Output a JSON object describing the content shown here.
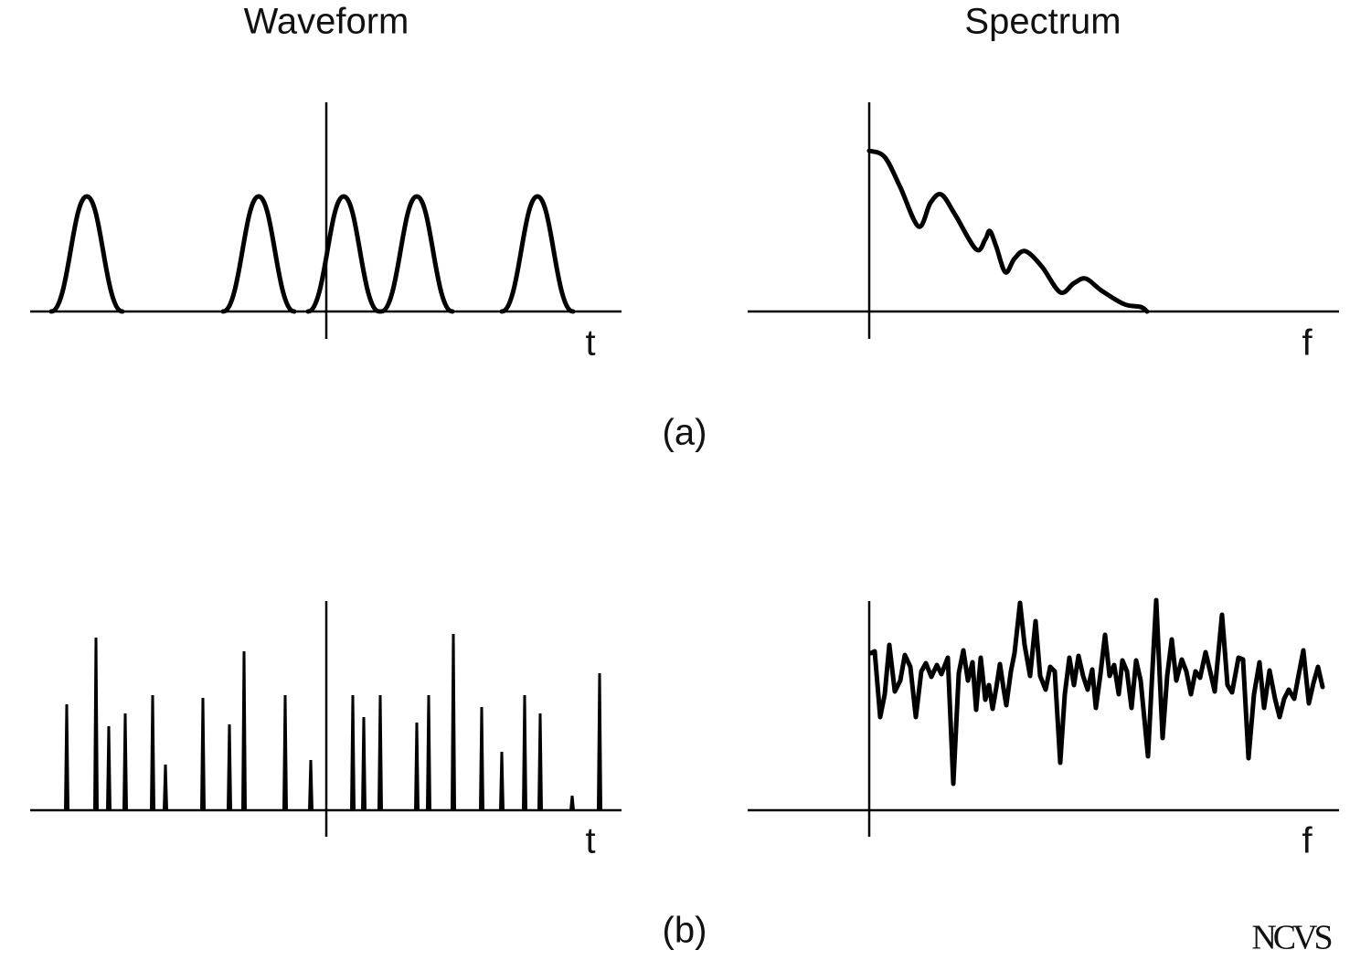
{
  "header": {
    "waveform_title": "Waveform",
    "spectrum_title": "Spectrum"
  },
  "rows": [
    {
      "label": "(a)",
      "waveform_axis": "t",
      "spectrum_axis": "f"
    },
    {
      "label": "(b)",
      "waveform_axis": "t",
      "spectrum_axis": "f"
    }
  ],
  "logo": "NCVS"
}
